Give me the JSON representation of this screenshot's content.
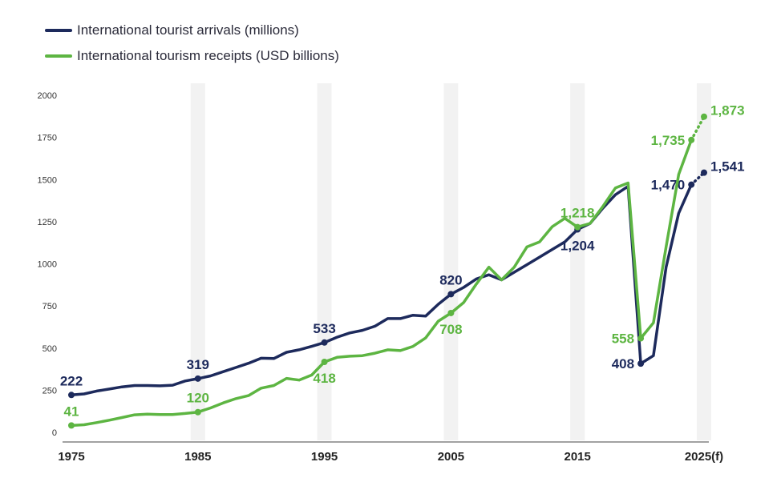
{
  "colors": {
    "arrivals": "#1d2a5c",
    "receipts": "#5db542",
    "band": "#f2f2f2"
  },
  "legend": {
    "arrivals": "International tourist arrivals (millions)",
    "receipts": "International tourism receipts (USD billions)"
  },
  "chart_data": {
    "type": "line",
    "title": "",
    "xlabel": "",
    "ylabel": "",
    "xlim": [
      1975,
      2025
    ],
    "ylim": [
      0,
      2000
    ],
    "y_ticks": [
      "0",
      "250",
      "500",
      "750",
      "1000",
      "1250",
      "1500",
      "1750",
      "2000"
    ],
    "x_ticks": [
      {
        "year": 1975,
        "label": "1975"
      },
      {
        "year": 1985,
        "label": "1985"
      },
      {
        "year": 1995,
        "label": "1995"
      },
      {
        "year": 2005,
        "label": "2005"
      },
      {
        "year": 2015,
        "label": "2015"
      },
      {
        "year": 2025,
        "label": "2025(f)"
      }
    ],
    "band_years": [
      1985,
      1995,
      2005,
      2015,
      2025
    ],
    "series": [
      {
        "name": "International tourist arrivals (millions)",
        "key": "arrivals",
        "x": [
          1975,
          1976,
          1977,
          1978,
          1979,
          1980,
          1981,
          1982,
          1983,
          1984,
          1985,
          1986,
          1987,
          1988,
          1989,
          1990,
          1991,
          1992,
          1993,
          1994,
          1995,
          1996,
          1997,
          1998,
          1999,
          2000,
          2001,
          2002,
          2003,
          2004,
          2005,
          2006,
          2007,
          2008,
          2009,
          2010,
          2011,
          2012,
          2013,
          2014,
          2015,
          2016,
          2017,
          2018,
          2019,
          2020,
          2021,
          2022,
          2023,
          2024
        ],
        "values": [
          222,
          228,
          245,
          257,
          270,
          278,
          278,
          276,
          280,
          305,
          319,
          335,
          360,
          385,
          410,
          440,
          438,
          475,
          490,
          510,
          533,
          565,
          590,
          605,
          630,
          675,
          675,
          695,
          690,
          760,
          820,
          860,
          910,
          935,
          905,
          950,
          995,
          1040,
          1085,
          1130,
          1204,
          1240,
          1330,
          1410,
          1460,
          408,
          455,
          980,
          1300,
          1470
        ],
        "forecast_x": [
          2024,
          2025
        ],
        "forecast_values": [
          1470,
          1541
        ],
        "labels": [
          {
            "year": 1975,
            "text": "222",
            "pos": "above"
          },
          {
            "year": 1985,
            "text": "319",
            "pos": "above"
          },
          {
            "year": 1995,
            "text": "533",
            "pos": "above"
          },
          {
            "year": 2005,
            "text": "820",
            "pos": "above"
          },
          {
            "year": 2015,
            "text": "1,204",
            "pos": "below"
          },
          {
            "year": 2020,
            "text": "408",
            "pos": "left"
          },
          {
            "year": 2024,
            "text": "1,470",
            "pos": "left"
          },
          {
            "year": 2025,
            "text": "1,541",
            "pos": "right"
          }
        ]
      },
      {
        "name": "International tourism receipts (USD billions)",
        "key": "receipts",
        "x": [
          1975,
          1976,
          1977,
          1978,
          1979,
          1980,
          1981,
          1982,
          1983,
          1984,
          1985,
          1986,
          1987,
          1988,
          1989,
          1990,
          1991,
          1992,
          1993,
          1994,
          1995,
          1996,
          1997,
          1998,
          1999,
          2000,
          2001,
          2002,
          2003,
          2004,
          2005,
          2006,
          2007,
          2008,
          2009,
          2010,
          2011,
          2012,
          2013,
          2014,
          2015,
          2016,
          2017,
          2018,
          2019,
          2020,
          2021,
          2022,
          2023,
          2024
        ],
        "values": [
          41,
          45,
          58,
          72,
          88,
          104,
          108,
          106,
          106,
          112,
          120,
          145,
          175,
          200,
          218,
          262,
          278,
          320,
          310,
          340,
          418,
          445,
          452,
          455,
          470,
          490,
          485,
          510,
          560,
          660,
          708,
          770,
          880,
          980,
          905,
          980,
          1100,
          1130,
          1220,
          1270,
          1218,
          1240,
          1340,
          1450,
          1480,
          558,
          650,
          1100,
          1530,
          1735
        ],
        "forecast_x": [
          2024,
          2025
        ],
        "forecast_values": [
          1735,
          1873
        ],
        "labels": [
          {
            "year": 1975,
            "text": "41",
            "pos": "above"
          },
          {
            "year": 1985,
            "text": "120",
            "pos": "above"
          },
          {
            "year": 1995,
            "text": "418",
            "pos": "below"
          },
          {
            "year": 2005,
            "text": "708",
            "pos": "below"
          },
          {
            "year": 2015,
            "text": "1,218",
            "pos": "above"
          },
          {
            "year": 2020,
            "text": "558",
            "pos": "left"
          },
          {
            "year": 2024,
            "text": "1,735",
            "pos": "left"
          },
          {
            "year": 2025,
            "text": "1,873",
            "pos": "right"
          }
        ]
      }
    ]
  }
}
